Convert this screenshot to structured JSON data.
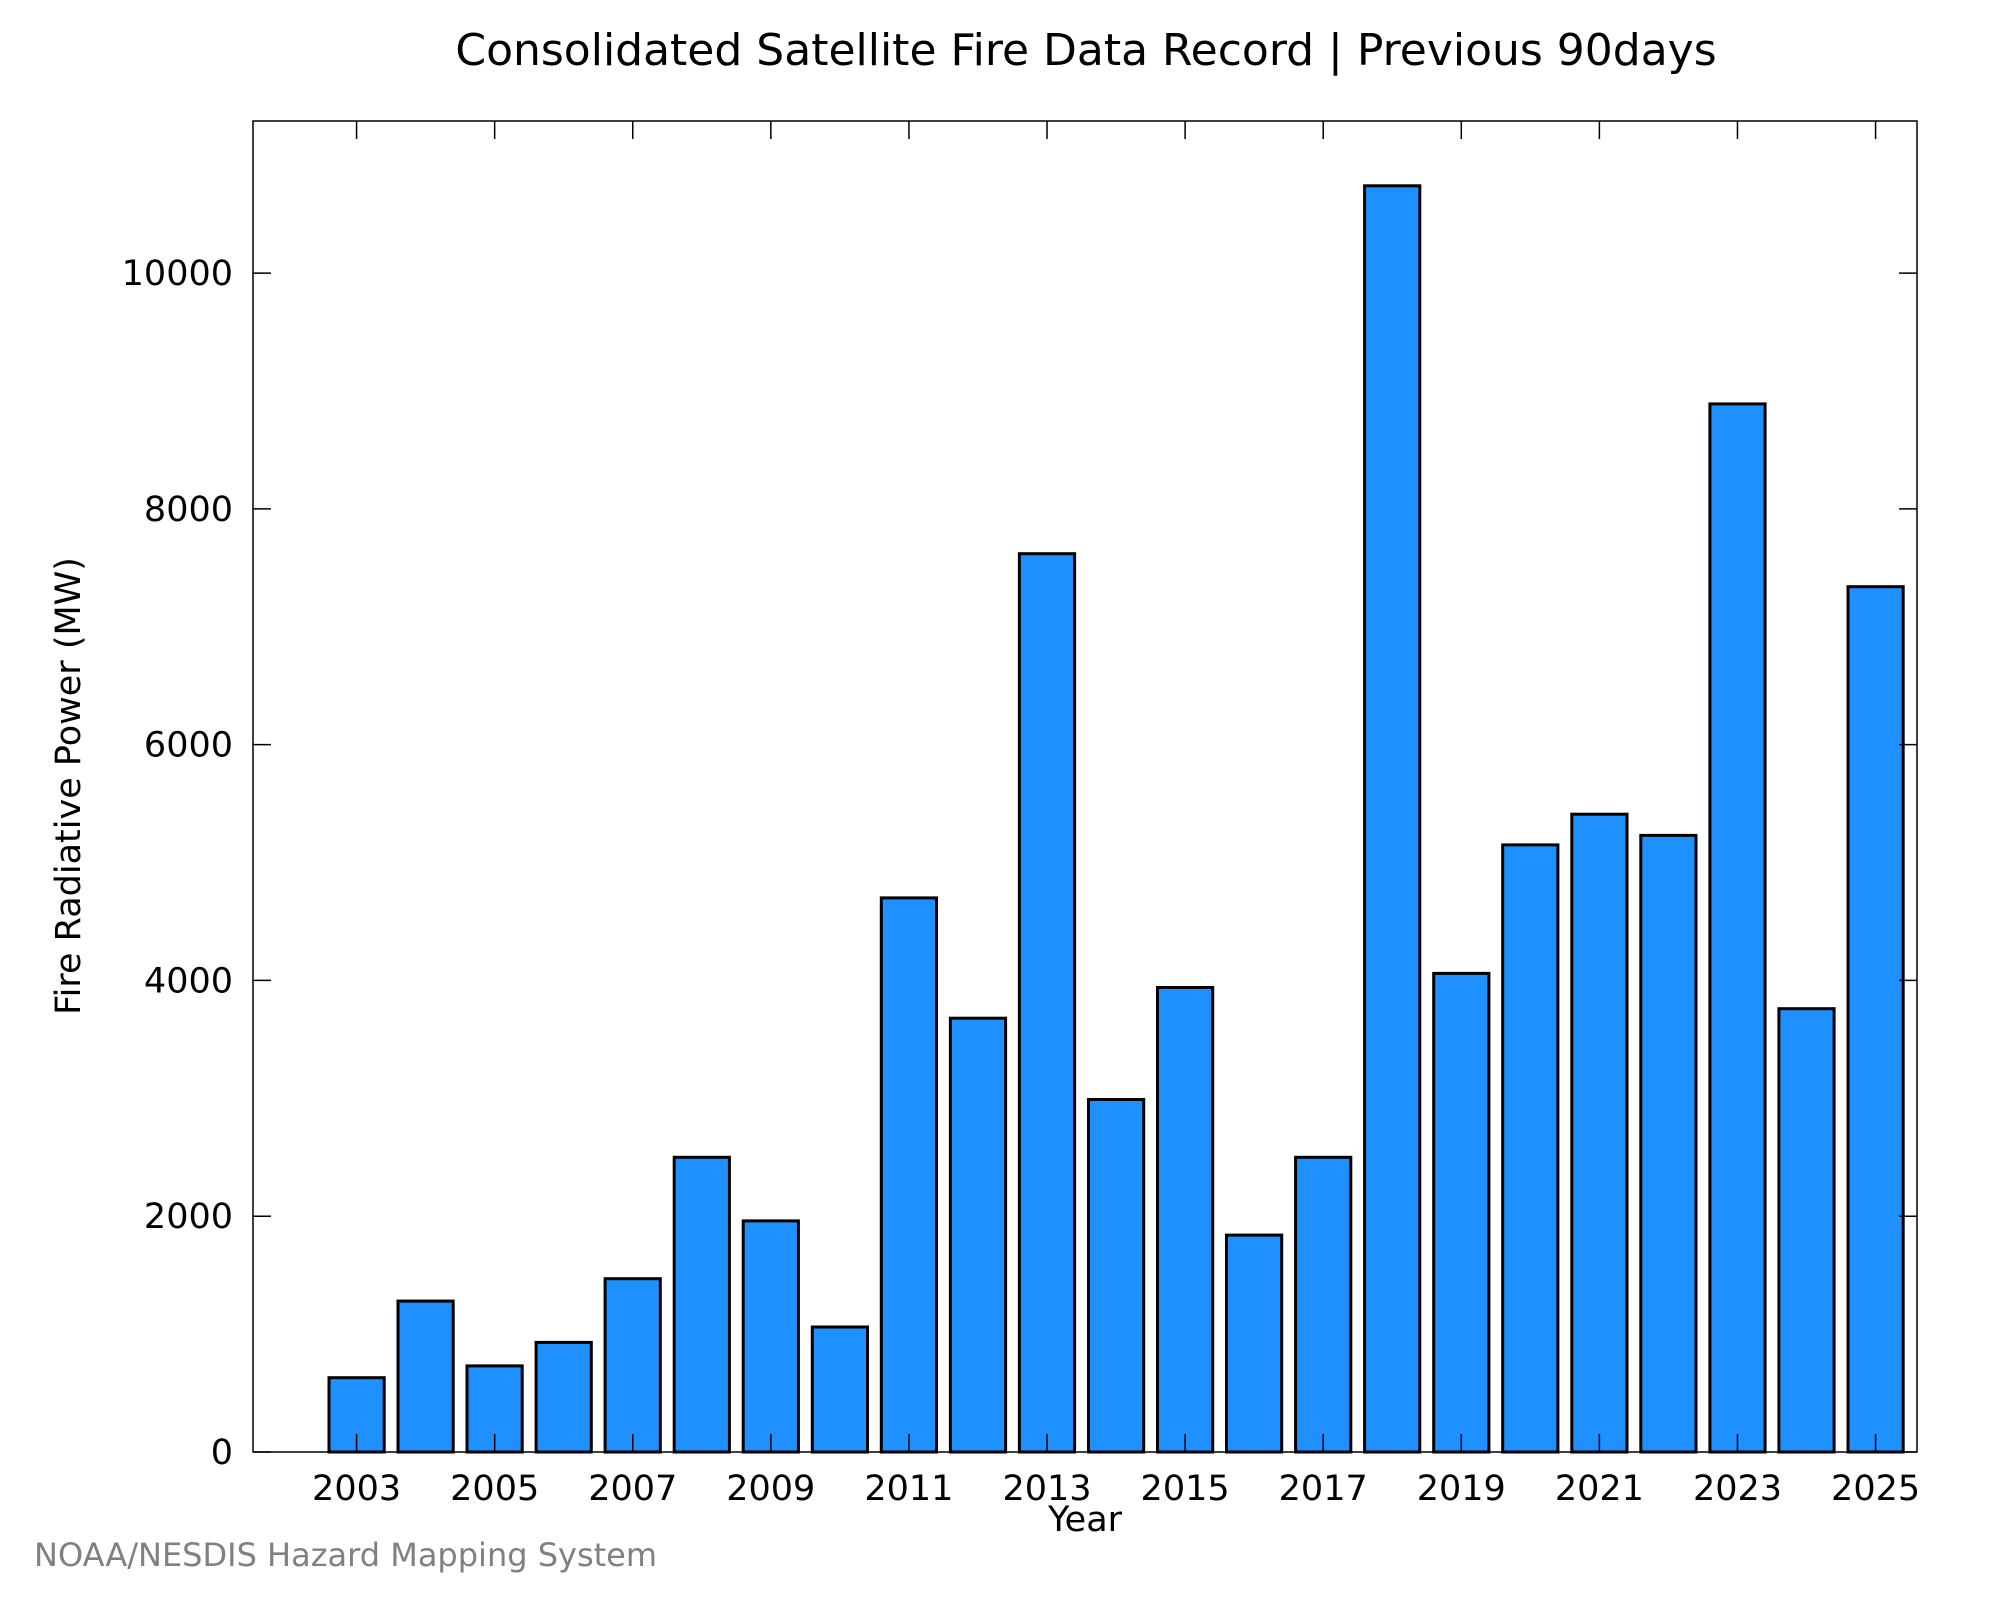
{
  "credit": "NOAA/NESDIS Hazard Mapping System",
  "colors": {
    "bar_fill": "#1E90FF",
    "bar_stroke": "#000000",
    "axis": "#000000"
  },
  "chart_data": {
    "type": "bar",
    "title": "Consolidated Satellite Fire Data Record | Previous 90days",
    "xlabel": "Year",
    "ylabel": "Fire Radiative Power (MW)",
    "categories": [
      2003,
      2004,
      2005,
      2006,
      2007,
      2008,
      2009,
      2010,
      2011,
      2012,
      2013,
      2014,
      2015,
      2016,
      2017,
      2018,
      2019,
      2020,
      2021,
      2022,
      2023,
      2024,
      2025
    ],
    "values": [
      630,
      1280,
      730,
      930,
      1470,
      2500,
      1960,
      1060,
      4700,
      3680,
      7620,
      2990,
      3940,
      1840,
      2500,
      10740,
      4060,
      5150,
      5410,
      5230,
      8890,
      3760,
      7340
    ],
    "x_tick_labels": [
      "2003",
      "2005",
      "2007",
      "2009",
      "2011",
      "2013",
      "2015",
      "2017",
      "2019",
      "2021",
      "2023",
      "2025"
    ],
    "y_tick_labels": [
      "0",
      "2000",
      "4000",
      "6000",
      "8000",
      "10000"
    ],
    "ylim": [
      0,
      11290
    ],
    "xlim": [
      2001.5,
      2025.6
    ],
    "grid": false,
    "legend": "none"
  }
}
